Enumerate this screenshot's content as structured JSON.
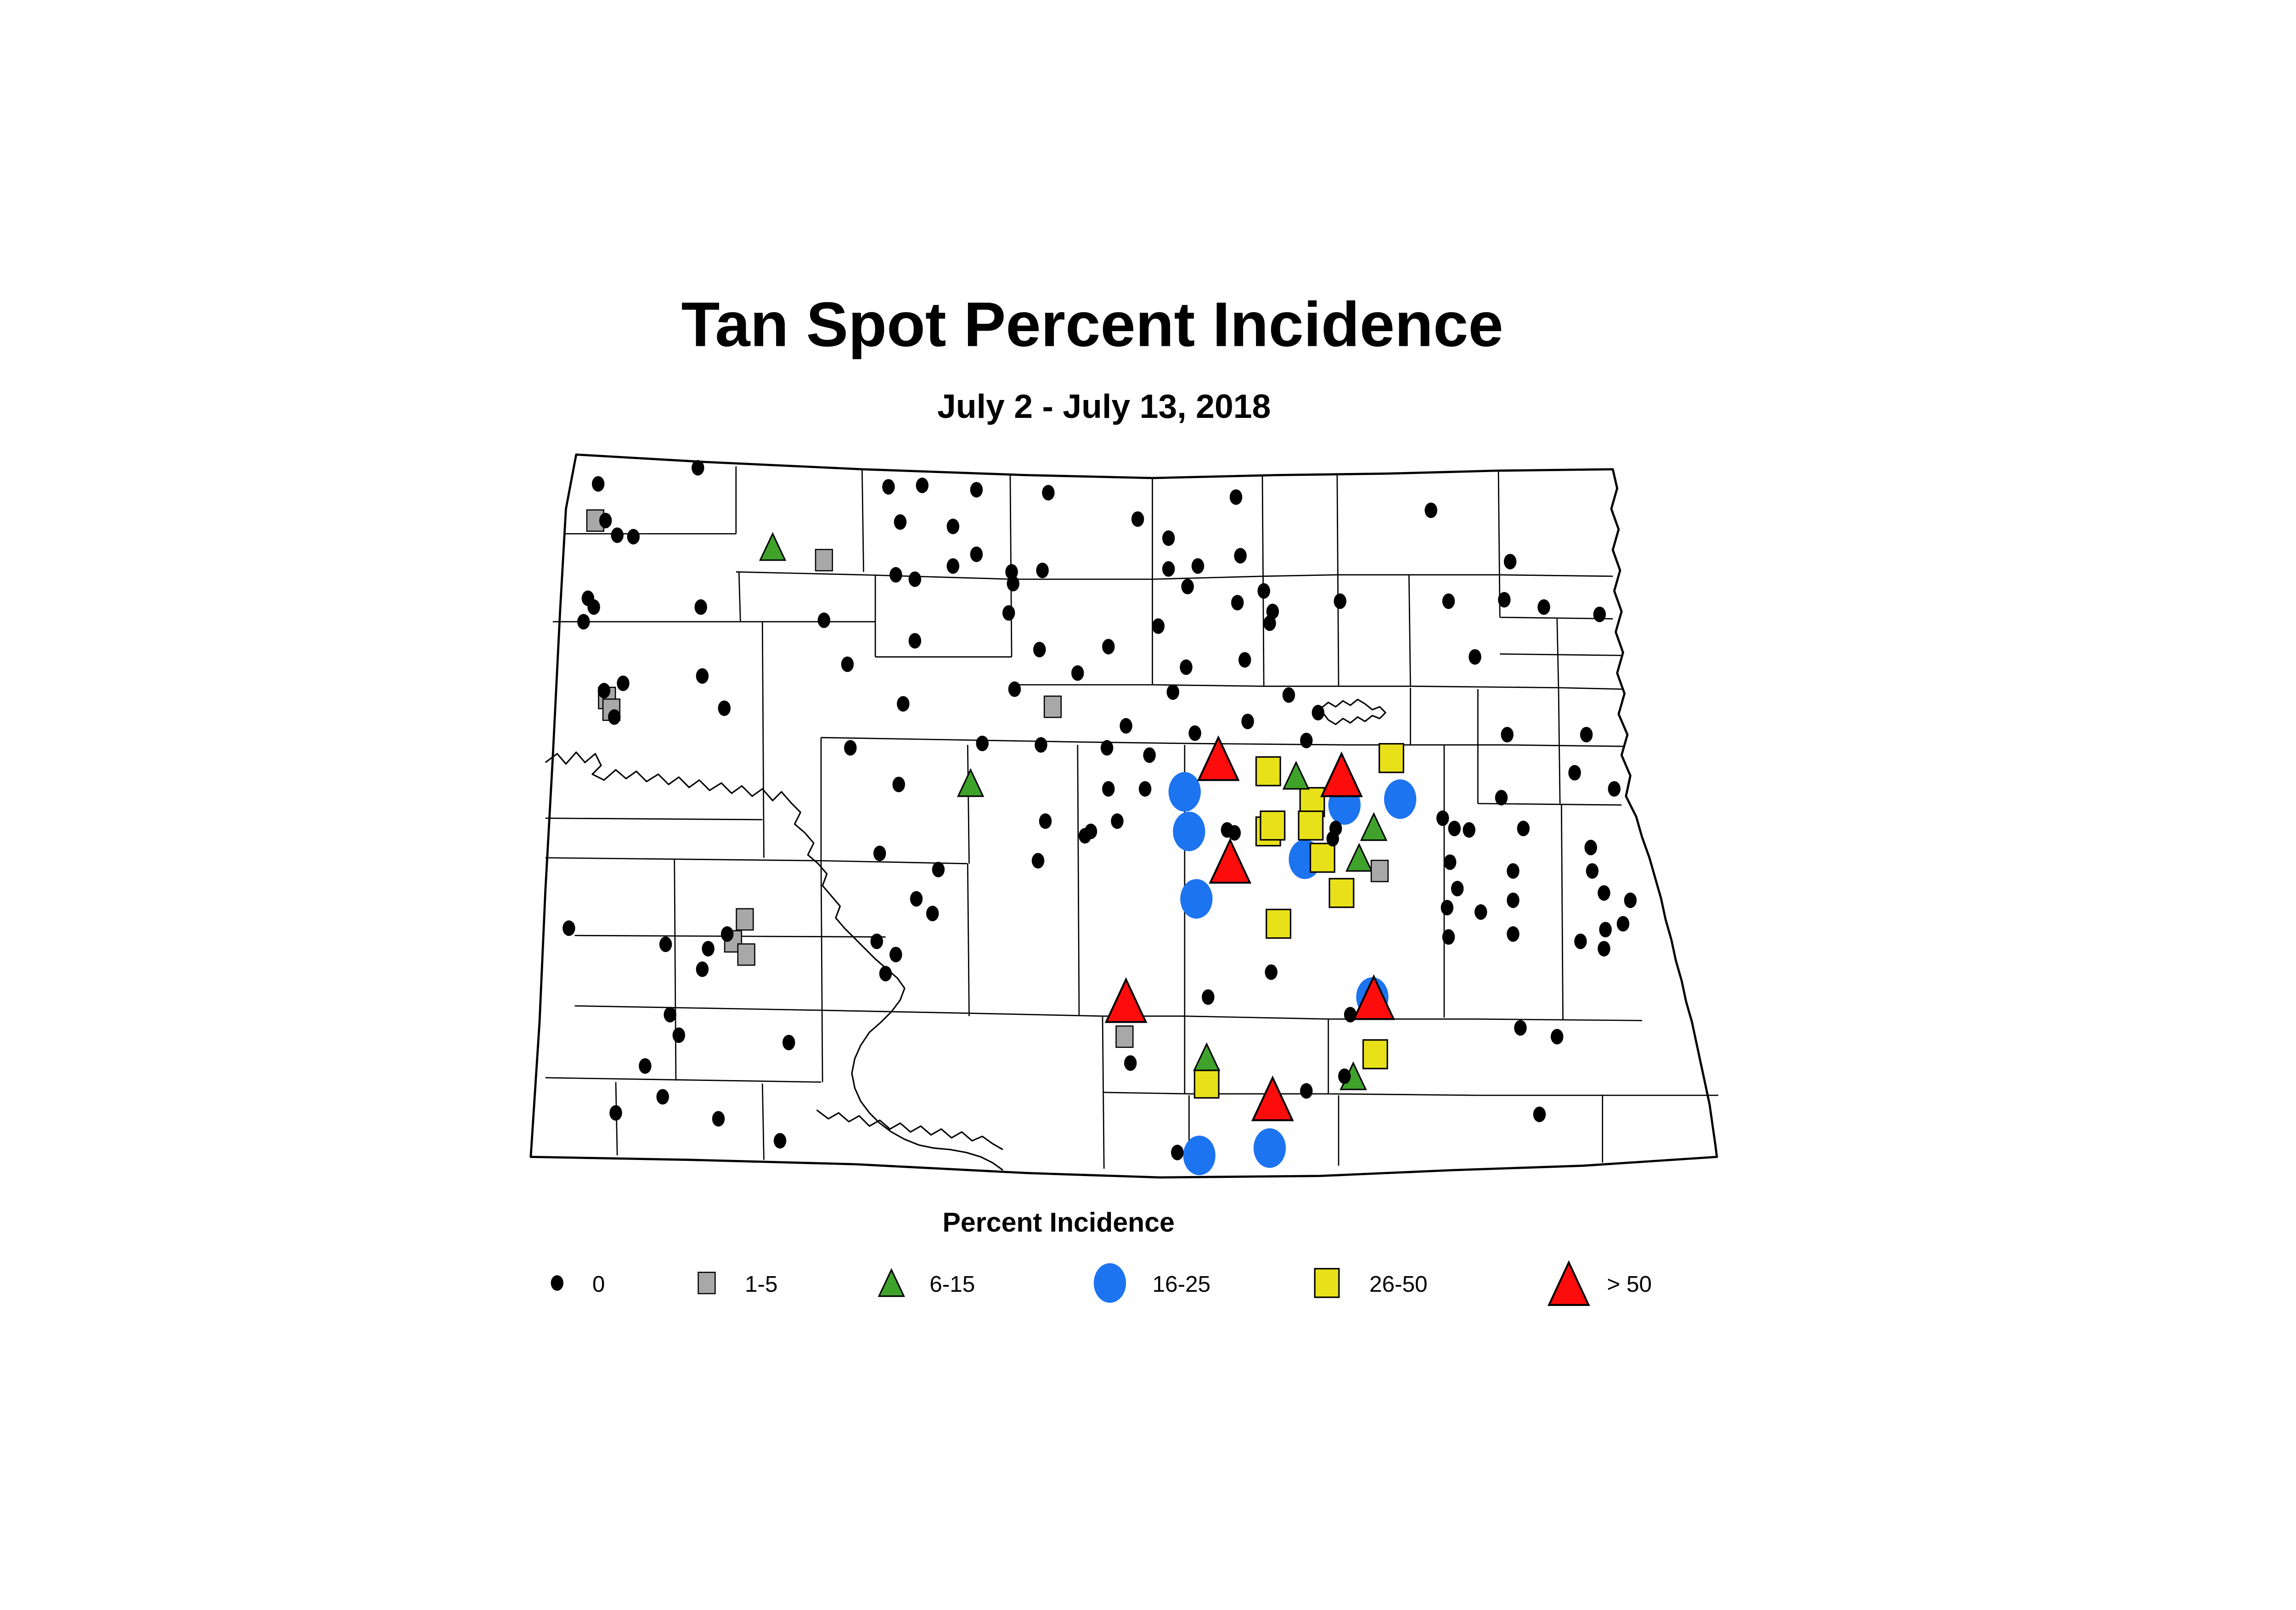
{
  "figure": {
    "title": "Tan Spot Percent Incidence",
    "subtitle": "July 2 - July 13, 2018"
  },
  "legend": {
    "title": "Percent Incidence",
    "items": [
      {
        "label": "0",
        "shape": "dot",
        "color": "#000000"
      },
      {
        "label": "1-5",
        "shape": "square",
        "color": "#a8a8a8"
      },
      {
        "label": "6-15",
        "shape": "triangle",
        "color": "#3fa32b"
      },
      {
        "label": "16-25",
        "shape": "circle",
        "color": "#1c74f0"
      },
      {
        "label": "26-50",
        "shape": "square",
        "color": "#e8e119"
      },
      {
        "label": "> 50",
        "shape": "triangle",
        "color": "#fc0d0c"
      }
    ]
  },
  "map": {
    "region": "North Dakota",
    "markers": {
      "0": [
        [
          476,
          182
        ],
        [
          408,
          193
        ],
        [
          606,
          195
        ],
        [
          629,
          194
        ],
        [
          666,
          197
        ],
        [
          715,
          199
        ],
        [
          776,
          217
        ],
        [
          843,
          202
        ],
        [
          976,
          211
        ],
        [
          413,
          218
        ],
        [
          421,
          228
        ],
        [
          432,
          229
        ],
        [
          650,
          222
        ],
        [
          614,
          219
        ],
        [
          611,
          255
        ],
        [
          624,
          258
        ],
        [
          666,
          241
        ],
        [
          650,
          249
        ],
        [
          690,
          253
        ],
        [
          711,
          252
        ],
        [
          691,
          261
        ],
        [
          797,
          230
        ],
        [
          797,
          251
        ],
        [
          817,
          249
        ],
        [
          846,
          242
        ],
        [
          810,
          263
        ],
        [
          862,
          266
        ],
        [
          844,
          274
        ],
        [
          868,
          280
        ],
        [
          866,
          288
        ],
        [
          914,
          273
        ],
        [
          988,
          273
        ],
        [
          1026,
          272
        ],
        [
          1053,
          277
        ],
        [
          1030,
          246
        ],
        [
          1091,
          282
        ],
        [
          790,
          290
        ],
        [
          1006,
          311
        ],
        [
          809,
          318
        ],
        [
          849,
          313
        ],
        [
          401,
          271
        ],
        [
          405,
          277
        ],
        [
          398,
          287
        ],
        [
          478,
          277
        ],
        [
          562,
          286
        ],
        [
          425,
          329
        ],
        [
          412,
          334
        ],
        [
          419,
          352
        ],
        [
          479,
          324
        ],
        [
          494,
          346
        ],
        [
          688,
          281
        ],
        [
          624,
          300
        ],
        [
          709,
          306
        ],
        [
          756,
          304
        ],
        [
          578,
          316
        ],
        [
          735,
          322
        ],
        [
          692,
          333
        ],
        [
          800,
          335
        ],
        [
          616,
          343
        ],
        [
          768,
          358
        ],
        [
          815,
          363
        ],
        [
          879,
          337
        ],
        [
          899,
          349
        ],
        [
          851,
          355
        ],
        [
          891,
          368
        ],
        [
          670,
          370
        ],
        [
          710,
          371
        ],
        [
          755,
          373
        ],
        [
          784,
          378
        ],
        [
          580,
          373
        ],
        [
          613,
          398
        ],
        [
          756,
          401
        ],
        [
          781,
          401
        ],
        [
          713,
          423
        ],
        [
          762,
          423
        ],
        [
          740,
          433
        ],
        [
          837,
          429
        ],
        [
          842,
          431
        ],
        [
          744,
          430
        ],
        [
          911,
          428
        ],
        [
          909,
          435
        ],
        [
          1028,
          364
        ],
        [
          1082,
          364
        ],
        [
          1074,
          390
        ],
        [
          1101,
          401
        ],
        [
          1024,
          407
        ],
        [
          984,
          421
        ],
        [
          992,
          428
        ],
        [
          1002,
          429
        ],
        [
          1039,
          428
        ],
        [
          1085,
          441
        ],
        [
          1086,
          457
        ],
        [
          1094,
          472
        ],
        [
          1112,
          477
        ],
        [
          1107,
          493
        ],
        [
          1095,
          497
        ],
        [
          1078,
          505
        ],
        [
          1094,
          510
        ],
        [
          989,
          451
        ],
        [
          1032,
          457
        ],
        [
          994,
          469
        ],
        [
          1032,
          477
        ],
        [
          987,
          482
        ],
        [
          1010,
          485
        ],
        [
          1032,
          500
        ],
        [
          988,
          502
        ],
        [
          600,
          445
        ],
        [
          640,
          456
        ],
        [
          708,
          450
        ],
        [
          625,
          476
        ],
        [
          636,
          486
        ],
        [
          598,
          505
        ],
        [
          611,
          514
        ],
        [
          604,
          527
        ],
        [
          388,
          496
        ],
        [
          454,
          507
        ],
        [
          496,
          500
        ],
        [
          483,
          510
        ],
        [
          479,
          524
        ],
        [
          457,
          555
        ],
        [
          463,
          569
        ],
        [
          538,
          574
        ],
        [
          440,
          590
        ],
        [
          452,
          611
        ],
        [
          420,
          622
        ],
        [
          490,
          626
        ],
        [
          532,
          641
        ],
        [
          867,
          526
        ],
        [
          824,
          543
        ],
        [
          921,
          555
        ],
        [
          917,
          597
        ],
        [
          891,
          607
        ],
        [
          803,
          649
        ],
        [
          771,
          588
        ],
        [
          1037,
          564
        ],
        [
          1062,
          570
        ],
        [
          1050,
          623
        ]
      ],
      "1-5": [
        [
          406,
          218
        ],
        [
          562,
          245
        ],
        [
          414,
          339
        ],
        [
          417,
          347
        ],
        [
          718,
          345
        ],
        [
          508,
          490
        ],
        [
          500,
          505
        ],
        [
          509,
          514
        ],
        [
          941,
          457
        ],
        [
          767,
          570
        ]
      ],
      "6-15": [
        [
          527,
          237
        ],
        [
          662,
          398
        ],
        [
          884,
          393
        ],
        [
          937,
          428
        ],
        [
          927,
          449
        ],
        [
          823,
          585
        ],
        [
          923,
          598
        ]
      ],
      "16-25": [
        [
          808,
          403
        ],
        [
          917,
          412
        ],
        [
          955,
          408
        ],
        [
          811,
          430
        ],
        [
          890,
          449
        ],
        [
          816,
          476
        ],
        [
          936,
          543
        ],
        [
          866,
          646
        ],
        [
          818,
          651
        ]
      ],
      "26-50": [
        [
          865,
          389
        ],
        [
          949,
          380
        ],
        [
          895,
          410
        ],
        [
          865,
          430
        ],
        [
          868,
          426
        ],
        [
          894,
          426
        ],
        [
          902,
          448
        ],
        [
          915,
          472
        ],
        [
          872,
          493
        ],
        [
          938,
          582
        ],
        [
          823,
          602
        ]
      ],
      "> 50": [
        [
          831,
          382
        ],
        [
          915,
          393
        ],
        [
          839,
          452
        ],
        [
          768,
          547
        ],
        [
          937,
          545
        ],
        [
          868,
          614
        ]
      ]
    }
  }
}
